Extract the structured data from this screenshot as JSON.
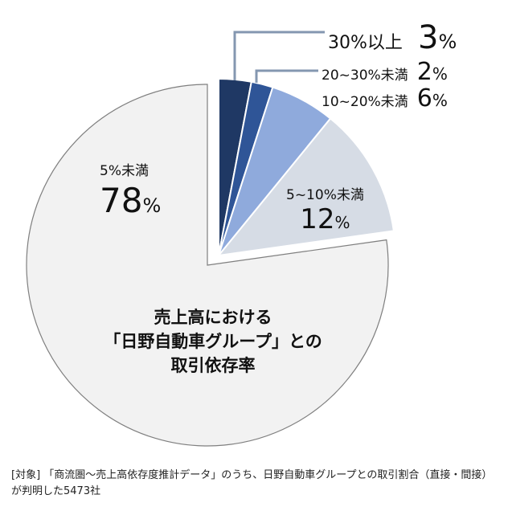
{
  "chart_data": {
    "type": "pie",
    "title": "売上高における「日野自動車グループ」との取引依存率",
    "title_lines": [
      "売上高における",
      "「日野自動車グループ」との",
      "取引依存率"
    ],
    "slices": [
      {
        "label": "30%以上",
        "value": 3,
        "value_text": "3",
        "color": "#1f3864"
      },
      {
        "label": "20~30%未満",
        "value": 2,
        "value_text": "2",
        "color": "#2f5597"
      },
      {
        "label": "10~20%未満",
        "value": 6,
        "value_text": "6",
        "color": "#8faadc"
      },
      {
        "label": "5~10%未満",
        "value": 12,
        "value_text": "12",
        "color": "#d6dce5"
      },
      {
        "label": "5%未満",
        "value": 78,
        "value_text": "78",
        "color": "#f2f2f2"
      }
    ],
    "unit": "%",
    "exploded": "5%未満"
  },
  "note": {
    "line1": "[対象] 「商流圏～売上高依存度推計データ」のうち、日野自動車グループとの取引割合（直接・間接）",
    "line2": "が判明した5473社"
  }
}
